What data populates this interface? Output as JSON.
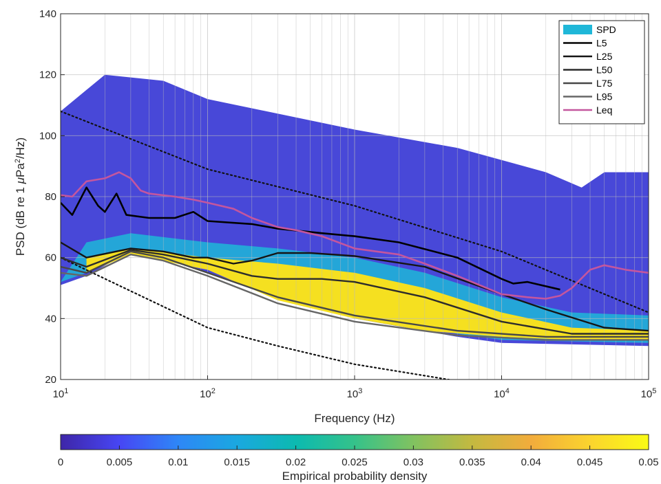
{
  "chart_data": {
    "type": "line",
    "xlabel": "Frequency (Hz)",
    "ylabel_prefix": "PSD (dB re 1 ",
    "ylabel_mu": "μ",
    "ylabel_mid": "Pa",
    "ylabel_sup": "2",
    "ylabel_suffix": "/Hz)",
    "x_scale": "log",
    "xlim": [
      10,
      100000
    ],
    "ylim": [
      20,
      140
    ],
    "grid": true,
    "legend_position": "top-right",
    "x_ticks": [
      {
        "base": "10",
        "exp": "1",
        "value": 10
      },
      {
        "base": "10",
        "exp": "2",
        "value": 100
      },
      {
        "base": "10",
        "exp": "3",
        "value": 1000
      },
      {
        "base": "10",
        "exp": "4",
        "value": 10000
      },
      {
        "base": "10",
        "exp": "5",
        "value": 100000
      }
    ],
    "y_ticks": [
      "20",
      "40",
      "60",
      "80",
      "100",
      "120",
      "140"
    ],
    "spd": {
      "name": "SPD",
      "color": "#1fb7d8",
      "upper_envelope": [
        [
          10,
          108
        ],
        [
          20,
          120
        ],
        [
          50,
          118
        ],
        [
          100,
          112
        ],
        [
          1000,
          102
        ],
        [
          5000,
          96
        ],
        [
          20000,
          88
        ],
        [
          35000,
          83
        ],
        [
          50000,
          88
        ],
        [
          100000,
          88
        ]
      ],
      "lower_envelope": [
        [
          10,
          51
        ],
        [
          15,
          54
        ],
        [
          30,
          62
        ],
        [
          50,
          60
        ],
        [
          100,
          55
        ],
        [
          1000,
          40
        ],
        [
          5000,
          34
        ],
        [
          10000,
          32
        ],
        [
          100000,
          31
        ]
      ],
      "core_upper": [
        [
          15,
          60
        ],
        [
          30,
          63
        ],
        [
          100,
          60
        ],
        [
          300,
          58
        ],
        [
          1000,
          55
        ],
        [
          3000,
          50
        ],
        [
          10000,
          42
        ],
        [
          30000,
          37
        ],
        [
          100000,
          36
        ]
      ],
      "core_lower": [
        [
          15,
          55
        ],
        [
          30,
          61
        ],
        [
          100,
          56
        ],
        [
          300,
          46
        ],
        [
          1000,
          40
        ],
        [
          3000,
          36
        ],
        [
          10000,
          34
        ],
        [
          30000,
          33
        ],
        [
          100000,
          33
        ]
      ]
    },
    "series": [
      {
        "name": "L5",
        "color": "#000000",
        "width": 2.6,
        "points": [
          [
            10,
            78
          ],
          [
            12,
            74
          ],
          [
            15,
            83
          ],
          [
            18,
            77
          ],
          [
            20,
            75
          ],
          [
            24,
            81
          ],
          [
            28,
            74
          ],
          [
            40,
            73
          ],
          [
            60,
            73
          ],
          [
            80,
            75
          ],
          [
            100,
            72
          ],
          [
            200,
            71
          ],
          [
            300,
            69.5
          ],
          [
            600,
            68
          ],
          [
            1000,
            67
          ],
          [
            2000,
            65
          ],
          [
            5000,
            60
          ],
          [
            10000,
            53
          ],
          [
            12000,
            51.5
          ],
          [
            15000,
            52
          ],
          [
            25000,
            49.5
          ]
        ]
      },
      {
        "name": "L25",
        "color": "#151515",
        "width": 2.4,
        "points": [
          [
            10,
            65
          ],
          [
            15,
            60
          ],
          [
            30,
            63
          ],
          [
            50,
            62
          ],
          [
            80,
            60
          ],
          [
            100,
            60
          ],
          [
            150,
            58
          ],
          [
            200,
            59
          ],
          [
            300,
            61.5
          ],
          [
            500,
            61.5
          ],
          [
            1000,
            60.5
          ],
          [
            3000,
            57
          ],
          [
            10000,
            48
          ],
          [
            20000,
            43
          ],
          [
            50000,
            37
          ],
          [
            100000,
            36
          ]
        ]
      },
      {
        "name": "L50",
        "color": "#2c2c2c",
        "width": 2.4,
        "points": [
          [
            10,
            60
          ],
          [
            15,
            57
          ],
          [
            30,
            62.5
          ],
          [
            50,
            61
          ],
          [
            100,
            58
          ],
          [
            200,
            54
          ],
          [
            300,
            53
          ],
          [
            600,
            53
          ],
          [
            1000,
            52
          ],
          [
            3000,
            47
          ],
          [
            10000,
            39
          ],
          [
            30000,
            35
          ],
          [
            100000,
            35
          ]
        ]
      },
      {
        "name": "L75",
        "color": "#474747",
        "width": 2.4,
        "points": [
          [
            10,
            57
          ],
          [
            15,
            55
          ],
          [
            30,
            62
          ],
          [
            50,
            60
          ],
          [
            100,
            55
          ],
          [
            300,
            47
          ],
          [
            1000,
            41
          ],
          [
            5000,
            36
          ],
          [
            20000,
            34
          ],
          [
            100000,
            34
          ]
        ]
      },
      {
        "name": "L95",
        "color": "#666666",
        "width": 2.4,
        "points": [
          [
            10,
            55
          ],
          [
            15,
            54
          ],
          [
            30,
            61
          ],
          [
            50,
            59
          ],
          [
            100,
            54
          ],
          [
            300,
            45
          ],
          [
            1000,
            39
          ],
          [
            5000,
            34.5
          ],
          [
            20000,
            33
          ],
          [
            100000,
            33
          ]
        ]
      },
      {
        "name": "Leq",
        "color": "#c4569e",
        "width": 2.6,
        "points": [
          [
            10,
            80.5
          ],
          [
            12,
            80
          ],
          [
            15,
            85
          ],
          [
            20,
            86
          ],
          [
            25,
            88
          ],
          [
            30,
            86
          ],
          [
            35,
            82
          ],
          [
            40,
            81
          ],
          [
            60,
            80
          ],
          [
            80,
            79
          ],
          [
            100,
            78
          ],
          [
            150,
            76
          ],
          [
            200,
            73
          ],
          [
            300,
            70
          ],
          [
            400,
            69
          ],
          [
            600,
            67
          ],
          [
            1000,
            63
          ],
          [
            2000,
            61
          ],
          [
            3000,
            58
          ],
          [
            5000,
            54
          ],
          [
            10000,
            48
          ],
          [
            15000,
            47
          ],
          [
            20000,
            46.5
          ],
          [
            25000,
            47.5
          ],
          [
            30000,
            50
          ],
          [
            40000,
            56
          ],
          [
            50000,
            57.5
          ],
          [
            70000,
            56
          ],
          [
            100000,
            55
          ]
        ]
      }
    ],
    "reference_lines": [
      {
        "style": "dotted",
        "points": [
          [
            10,
            108
          ],
          [
            100,
            89
          ],
          [
            1000,
            77
          ],
          [
            10000,
            62
          ],
          [
            100000,
            42
          ]
        ]
      },
      {
        "style": "dotted",
        "points": [
          [
            10,
            60
          ],
          [
            30,
            49
          ],
          [
            100,
            37
          ],
          [
            300,
            31
          ],
          [
            1000,
            25
          ],
          [
            5000,
            19.5
          ]
        ]
      }
    ],
    "colorbar": {
      "label": "Empirical probability density",
      "ticks": [
        "0",
        "0.005",
        "0.01",
        "0.015",
        "0.02",
        "0.025",
        "0.03",
        "0.035",
        "0.04",
        "0.045",
        "0.05"
      ],
      "colors": [
        "#3e26a8",
        "#4746f4",
        "#2e87f7",
        "#1aa8e0",
        "#0cbab0",
        "#35c28a",
        "#81c260",
        "#c4b940",
        "#f2ac3c",
        "#fbd42e",
        "#f9fb15"
      ]
    }
  }
}
